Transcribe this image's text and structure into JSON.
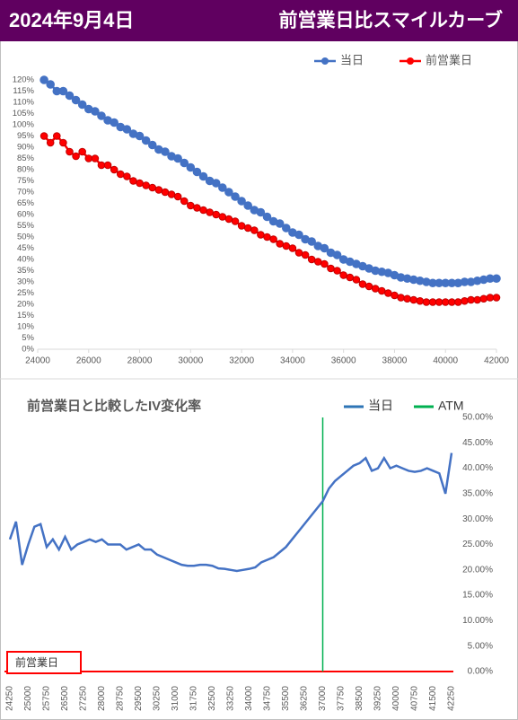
{
  "header": {
    "date": "2024年9月4日",
    "title": "前営業日比スマイルカーブ"
  },
  "chart_data": [
    {
      "type": "line",
      "legend": "top-right",
      "grid": false,
      "x": [
        24250,
        24500,
        24750,
        25000,
        25250,
        25500,
        25750,
        26000,
        26250,
        26500,
        26750,
        27000,
        27250,
        27500,
        27750,
        28000,
        28250,
        28500,
        28750,
        29000,
        29250,
        29500,
        29750,
        30000,
        30250,
        30500,
        30750,
        31000,
        31250,
        31500,
        31750,
        32000,
        32250,
        32500,
        32750,
        33000,
        33250,
        33500,
        33750,
        34000,
        34250,
        34500,
        34750,
        35000,
        35250,
        35500,
        35750,
        36000,
        36250,
        36500,
        36750,
        37000,
        37250,
        37500,
        37750,
        38000,
        38250,
        38500,
        38750,
        39000,
        39250,
        39500,
        39750,
        40000,
        40250,
        40500,
        40750,
        41000,
        41250,
        41500,
        41750,
        42000
      ],
      "series": [
        {
          "name": "当日",
          "color": "#4472c4",
          "values": [
            120,
            118,
            115,
            115,
            113,
            111,
            109,
            107,
            106,
            104,
            102,
            101,
            99,
            98,
            96,
            95,
            93,
            91,
            89,
            88,
            86,
            85,
            83,
            81,
            79,
            77,
            75,
            74,
            72,
            70,
            68,
            66,
            64,
            62,
            61,
            59,
            57,
            56,
            54,
            52,
            51,
            49,
            48,
            46,
            45,
            43,
            42,
            40,
            39,
            38,
            37,
            36,
            35,
            34.5,
            34,
            33,
            32,
            31.5,
            31,
            30.5,
            30,
            29.5,
            29.5,
            29.5,
            29.5,
            29.5,
            30,
            30,
            30.5,
            31,
            31.5,
            31.5
          ]
        },
        {
          "name": "前営業日",
          "color": "#ff0000",
          "values": [
            95,
            92,
            95,
            92,
            88,
            86,
            88,
            85,
            85,
            82,
            82,
            80,
            78,
            77,
            75,
            74,
            73,
            72,
            71,
            70,
            69,
            68,
            66,
            64,
            63,
            62,
            61,
            60,
            59,
            58,
            57,
            55,
            54,
            53,
            51,
            50,
            49,
            47,
            46,
            45,
            43,
            42,
            40,
            39,
            38,
            36,
            35,
            33,
            32,
            31,
            29,
            28,
            27,
            26,
            25,
            24,
            23,
            22.5,
            22,
            21.5,
            21,
            21,
            21,
            21,
            21,
            21,
            21.5,
            22,
            22,
            22.5,
            23,
            23
          ]
        }
      ],
      "xlim": [
        24000,
        42000
      ],
      "xticks": [
        24000,
        26000,
        28000,
        30000,
        32000,
        34000,
        36000,
        38000,
        40000,
        42000
      ],
      "ylim": [
        0,
        120
      ],
      "yticks": [
        {
          "value": 0,
          "label": "0%"
        },
        {
          "value": 5,
          "label": "5%"
        },
        {
          "value": 10,
          "label": "10%"
        },
        {
          "value": 15,
          "label": "15%"
        },
        {
          "value": 20,
          "label": "20%"
        },
        {
          "value": 25,
          "label": "25%"
        },
        {
          "value": 30,
          "label": "30%"
        },
        {
          "value": 35,
          "label": "35%"
        },
        {
          "value": 40,
          "label": "40%"
        },
        {
          "value": 45,
          "label": "45%"
        },
        {
          "value": 50,
          "label": "50%"
        },
        {
          "value": 55,
          "label": "55%"
        },
        {
          "value": 60,
          "label": "60%"
        },
        {
          "value": 65,
          "label": "65%"
        },
        {
          "value": 70,
          "label": "70%"
        },
        {
          "value": 75,
          "label": "75%"
        },
        {
          "value": 80,
          "label": "80%"
        },
        {
          "value": 85,
          "label": "85%"
        },
        {
          "value": 90,
          "label": "90%"
        },
        {
          "value": 95,
          "label": "95%"
        },
        {
          "value": 100,
          "label": "100%"
        },
        {
          "value": 105,
          "label": "105%"
        },
        {
          "value": 110,
          "label": "110%"
        },
        {
          "value": 115,
          "label": "115%"
        },
        {
          "value": 120,
          "label": "120%"
        }
      ]
    },
    {
      "type": "line",
      "title": "前営業日と比較したIV変化率",
      "legend": "top-right",
      "grid": false,
      "y_axis_position": "right",
      "categories": [
        24250,
        null,
        null,
        25000,
        null,
        null,
        25750,
        null,
        null,
        26500,
        null,
        null,
        27250,
        null,
        null,
        28000,
        null,
        null,
        28750,
        null,
        null,
        29500,
        null,
        null,
        30250,
        null,
        null,
        31000,
        null,
        null,
        31750,
        null,
        null,
        32500,
        null,
        null,
        33250,
        null,
        null,
        34000,
        null,
        null,
        34750,
        null,
        null,
        35500,
        null,
        null,
        36250,
        null,
        null,
        37000,
        null,
        null,
        37750,
        null,
        null,
        38500,
        null,
        null,
        39250,
        null,
        null,
        40000,
        null,
        null,
        40750,
        null,
        null,
        41500,
        null,
        null,
        42250
      ],
      "series": [
        {
          "name": "当日",
          "color": "#4472c4",
          "legend_color": "#2e75b6",
          "values": [
            26,
            29.5,
            21,
            25,
            28.5,
            29,
            24.5,
            26,
            24,
            26.5,
            24,
            25,
            25.5,
            26,
            25.5,
            26,
            25,
            25,
            25,
            24,
            24.5,
            25,
            24,
            24,
            23,
            22.5,
            22,
            21.5,
            21,
            20.8,
            20.8,
            21,
            21,
            20.8,
            20.3,
            20.2,
            20,
            19.8,
            20,
            20.2,
            20.5,
            21.5,
            22,
            22.5,
            23.5,
            24.5,
            26,
            27.5,
            29,
            30.5,
            32,
            33.5,
            36,
            37.5,
            38.5,
            39.5,
            40.5,
            41,
            42,
            39.5,
            40,
            42,
            40,
            40.5,
            40,
            39.5,
            39.3,
            39.5,
            40,
            39.5,
            39,
            35,
            43
          ]
        }
      ],
      "markers": [
        {
          "name": "ATM",
          "color": "#00b050",
          "category": 37000
        }
      ],
      "baseline": {
        "name": "前営業日",
        "value": 0,
        "color": "#ff0000"
      },
      "ylim": [
        0,
        50
      ],
      "yticks": [
        {
          "value": 0,
          "label": "0.00%"
        },
        {
          "value": 5,
          "label": "5.00%"
        },
        {
          "value": 10,
          "label": "10.00%"
        },
        {
          "value": 15,
          "label": "15.00%"
        },
        {
          "value": 20,
          "label": "20.00%"
        },
        {
          "value": 25,
          "label": "25.00%"
        },
        {
          "value": 30,
          "label": "30.00%"
        },
        {
          "value": 35,
          "label": "35.00%"
        },
        {
          "value": 40,
          "label": "40.00%"
        },
        {
          "value": 45,
          "label": "45.00%"
        },
        {
          "value": 50,
          "label": "50.00%"
        }
      ]
    }
  ]
}
